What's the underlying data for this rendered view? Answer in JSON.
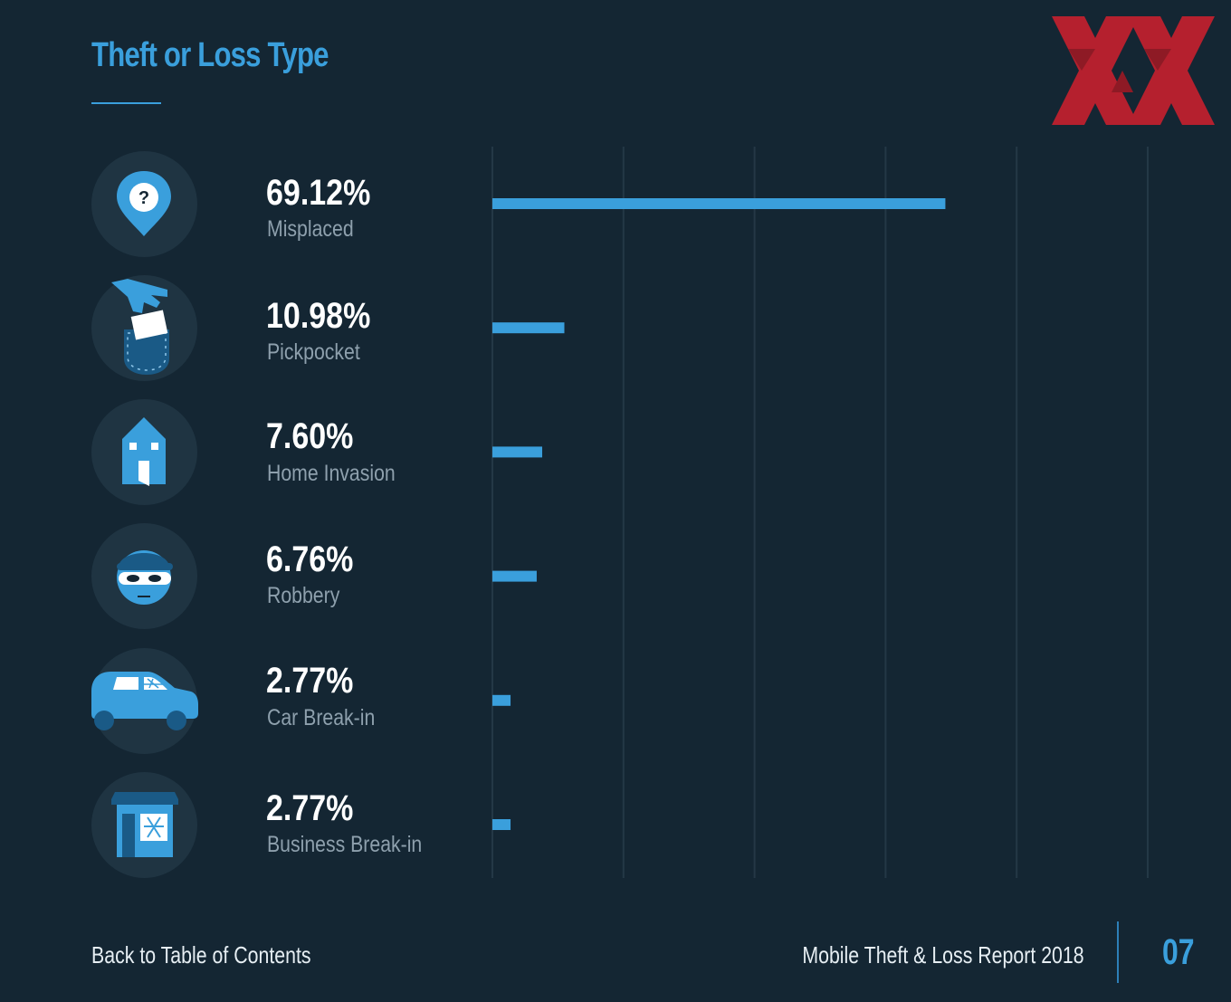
{
  "header": {
    "title": "Theft or Loss Type"
  },
  "chart_data": {
    "type": "bar",
    "orientation": "horizontal",
    "categories": [
      "Misplaced",
      "Pickpocket",
      "Home Invasion",
      "Robbery",
      "Car Break-in",
      "Business Break-in"
    ],
    "values": [
      69.12,
      10.98,
      7.6,
      6.76,
      2.77,
      2.77
    ],
    "value_labels": [
      "69.12%",
      "10.98%",
      "7.60%",
      "6.76%",
      "2.77%",
      "2.77%"
    ],
    "icons": [
      "location-pin-question-icon",
      "pickpocket-hand-icon",
      "house-icon",
      "masked-robber-icon",
      "car-icon",
      "storefront-icon"
    ],
    "xlim": [
      0,
      100
    ],
    "grid": true,
    "colors": {
      "bar": "#3a9fdc",
      "grid": "#243846"
    }
  },
  "footer": {
    "back_link": "Back to Table of Contents",
    "report_title": "Mobile Theft & Loss Report 2018",
    "page_number": "07"
  },
  "colors": {
    "background": "#142633",
    "accent": "#3a9fdc",
    "logo": "#b5202e"
  }
}
